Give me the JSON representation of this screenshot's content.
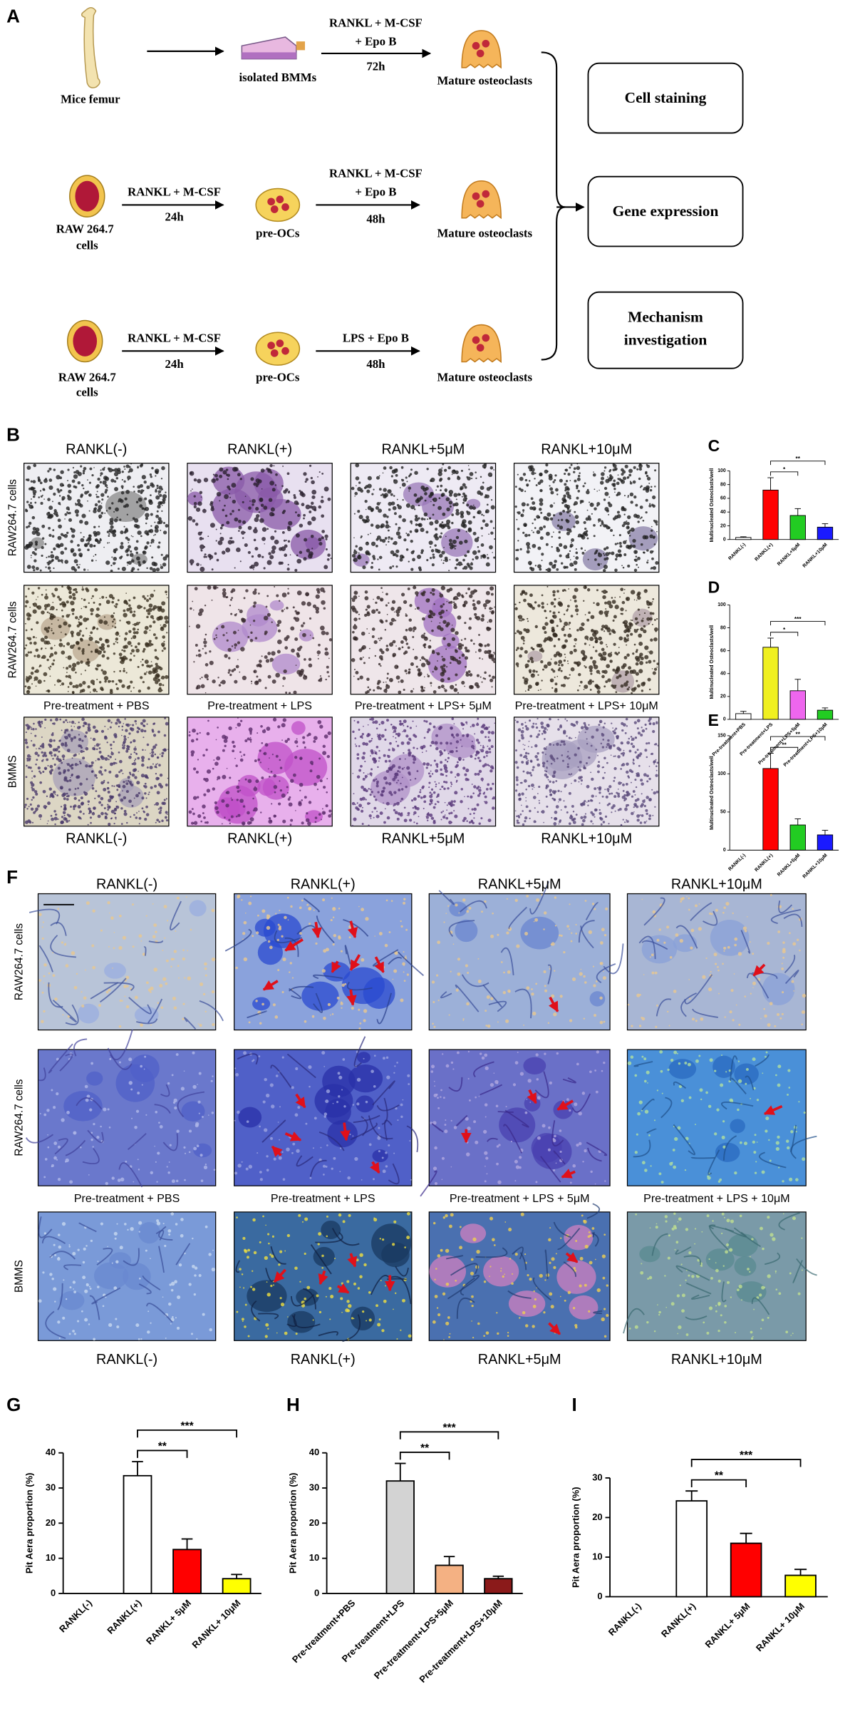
{
  "panel_labels": [
    "A",
    "B",
    "F"
  ],
  "schematic": {
    "row1": {
      "source": "Mice femur",
      "intermediate": "isolated BMMs",
      "treatment": [
        "RANKL + M-CSF",
        "+ Epo B"
      ],
      "time": "72h",
      "result": "Mature osteoclasts"
    },
    "row2": {
      "source": [
        "RAW 264.7",
        "cells"
      ],
      "pre_treatment": "RANKL + M-CSF",
      "pre_time": "24h",
      "intermediate": "pre-OCs",
      "treatment": [
        "RANKL + M-CSF",
        "+ Epo B"
      ],
      "time": "48h",
      "result": "Mature osteoclasts"
    },
    "row3": {
      "source": [
        "RAW 264.7",
        "cells"
      ],
      "pre_treatment": "RANKL + M-CSF",
      "pre_time": "24h",
      "intermediate": "pre-OCs",
      "treatment": [
        "LPS + Epo B"
      ],
      "time": "48h",
      "result": "Mature osteoclasts"
    },
    "outcomes": [
      [
        "Cell staining"
      ],
      [
        "Gene expression"
      ],
      [
        "Mechanism",
        "investigation"
      ]
    ]
  },
  "panel_B": {
    "column_titles": [
      "RANKL(-)",
      "RANKL(+)",
      "RANKL+5μM",
      "RANKL+10μM"
    ],
    "row_labels": [
      "RAW264.7 cells",
      "RAW264.7 cells",
      "BMMS"
    ],
    "middle_titles": [
      "Pre-treatment + PBS",
      "Pre-treatment + LPS",
      "Pre-treatment + LPS+ 5μM",
      "Pre-treatment + LPS+ 10μM"
    ],
    "bottom_titles": [
      "RANKL(-)",
      "RANKL(+)",
      "RANKL+5μM",
      "RANKL+10μM"
    ]
  },
  "panel_F": {
    "column_titles": [
      "RANKL(-)",
      "RANKL(+)",
      "RANKL+5μM",
      "RANKL+10μM"
    ],
    "row_labels": [
      "RAW264.7 cells",
      "RAW264.7 cells",
      "BMMS"
    ],
    "middle_titles": [
      "Pre-treatment + PBS",
      "Pre-treatment + LPS",
      "Pre-treatment + LPS + 5μM",
      "Pre-treatment + LPS + 10μM"
    ],
    "bottom_titles": [
      "RANKL(-)",
      "RANKL(+)",
      "RANKL+5μM",
      "RANKL+10μM"
    ]
  },
  "chart_data": [
    {
      "type": "bar",
      "label": "C",
      "ylabel": "Multinucleated Osteoclasts/well",
      "categories": [
        "RANKL(-)",
        "RANKL(+)",
        "RANKL+5μM",
        "RANKL+10μM"
      ],
      "values": [
        3,
        72,
        35,
        18
      ],
      "errors": [
        1,
        18,
        10,
        5
      ],
      "colors": [
        "#ffffff",
        "#ff0000",
        "#22cc22",
        "#1a1aff"
      ],
      "ylim": [
        0,
        100
      ],
      "yticks": [
        0,
        20,
        40,
        60,
        80,
        100
      ],
      "annotations": [
        {
          "from": 1,
          "to": 2,
          "label": "*"
        },
        {
          "from": 1,
          "to": 3,
          "label": "**"
        }
      ]
    },
    {
      "type": "bar",
      "label": "D",
      "ylabel": "Multinucleated Osteoclasts/well",
      "categories": [
        "Pre-treatment+PBS",
        "Pre-treatment+LPS",
        "Pre-treatment+LPS+5μM",
        "Pre-treatment+LPS+10μM"
      ],
      "values": [
        5,
        63,
        25,
        8
      ],
      "errors": [
        2,
        8,
        10,
        2
      ],
      "colors": [
        "#ffffff",
        "#f0f020",
        "#ee66ee",
        "#22cc22"
      ],
      "ylim": [
        0,
        100
      ],
      "yticks": [
        0,
        20,
        40,
        60,
        80,
        100
      ],
      "annotations": [
        {
          "from": 1,
          "to": 2,
          "label": "*"
        },
        {
          "from": 1,
          "to": 3,
          "label": "***"
        }
      ]
    },
    {
      "type": "bar",
      "label": "E",
      "ylabel": "Multinucleated Osteoclasts/well",
      "categories": [
        "RANKL(-)",
        "RANKL(+)",
        "RANKL+5μM",
        "RANKL+10μM"
      ],
      "values": [
        0,
        107,
        33,
        20
      ],
      "errors": [
        0,
        20,
        8,
        6
      ],
      "colors": [
        "#ffffff",
        "#ff0000",
        "#22cc22",
        "#1a1aff"
      ],
      "ylim": [
        0,
        150
      ],
      "yticks": [
        0,
        50,
        100,
        150
      ],
      "annotations": [
        {
          "from": 1,
          "to": 2,
          "label": "**"
        },
        {
          "from": 1,
          "to": 3,
          "label": "**"
        }
      ]
    },
    {
      "type": "bar",
      "label": "G",
      "ylabel": "Pit Aera proportion (%)",
      "categories": [
        "RANKL(-)",
        "RANKL(+)",
        "RANKL+ 5μM",
        "RANKL+ 10μM"
      ],
      "values": [
        0,
        33.5,
        12.5,
        4.2
      ],
      "errors": [
        0,
        4,
        3,
        1.2
      ],
      "colors": [
        "#ffffff",
        "#ffffff",
        "#ff0000",
        "#ffff00"
      ],
      "ylim": [
        0,
        40
      ],
      "yticks": [
        0,
        10,
        20,
        30,
        40
      ],
      "annotations": [
        {
          "from": 1,
          "to": 2,
          "label": "**"
        },
        {
          "from": 1,
          "to": 3,
          "label": "***"
        }
      ]
    },
    {
      "type": "bar",
      "label": "H",
      "ylabel": "Pit Aera proportion (%)",
      "categories": [
        "Pre-treatment+PBS",
        "Pre-treatment+LPS",
        "Pre-treatment+LPS+5μM",
        "Pre-treatment+LPS+10μM"
      ],
      "values": [
        0,
        32,
        8,
        4.2
      ],
      "errors": [
        0,
        5,
        2.5,
        0.7
      ],
      "colors": [
        "#ffffff",
        "#d3d3d3",
        "#f4b183",
        "#8b1a1a"
      ],
      "ylim": [
        0,
        40
      ],
      "yticks": [
        0,
        10,
        20,
        30,
        40
      ],
      "annotations": [
        {
          "from": 1,
          "to": 2,
          "label": "**"
        },
        {
          "from": 1,
          "to": 3,
          "label": "***"
        }
      ]
    },
    {
      "type": "bar",
      "label": "I",
      "ylabel": "Pit Aera proportion (%)",
      "categories": [
        "RANKL(-)",
        "RANKL(+)",
        "RANKL+ 5μM",
        "RANKL+ 10μM"
      ],
      "values": [
        0,
        24.2,
        13.5,
        5.4
      ],
      "errors": [
        0,
        2.5,
        2.5,
        1.5
      ],
      "colors": [
        "#ffffff",
        "#ffffff",
        "#ff0000",
        "#ffff00"
      ],
      "ylim": [
        0,
        30
      ],
      "yticks": [
        0,
        10,
        20,
        30
      ],
      "annotations": [
        {
          "from": 1,
          "to": 2,
          "label": "**"
        },
        {
          "from": 1,
          "to": 3,
          "label": "***"
        }
      ]
    }
  ]
}
